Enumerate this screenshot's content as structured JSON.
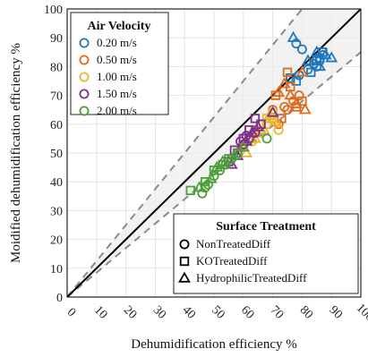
{
  "chart_data": {
    "type": "scatter",
    "title": "",
    "xlabel": "Dehumidification efficiency  %",
    "ylabel": "Moidified dehumidification efficiency %",
    "xlim": [
      0,
      100
    ],
    "ylim": [
      0,
      100
    ],
    "xticks": [
      "0",
      "10",
      "20",
      "30",
      "40",
      "50",
      "60",
      "70",
      "80",
      "90",
      "100"
    ],
    "yticks": [
      "0",
      "10",
      "20",
      "30",
      "40",
      "50",
      "60",
      "70",
      "80",
      "90",
      "100"
    ],
    "grid": true,
    "reference_lines": {
      "identity": "y = x",
      "upper_bound_slope": 1.25,
      "lower_bound_slope": 0.85
    },
    "legend_velocity": {
      "title": "Air Velocity",
      "placement": "top-left",
      "entries": [
        {
          "label": "0.20 m/s",
          "color": "#1f77bd"
        },
        {
          "label": "0.50 m/s",
          "color": "#e06a1b"
        },
        {
          "label": "1.00 m/s",
          "color": "#e9b52b"
        },
        {
          "label": "1.50 m/s",
          "color": "#7e2f8e"
        },
        {
          "label": "2.00 m/s",
          "color": "#4a9f3a"
        }
      ]
    },
    "legend_surface": {
      "title": "Surface Treatment",
      "placement": "bottom-right",
      "entries": [
        {
          "label": "NonTreatedDiff",
          "marker": "circle"
        },
        {
          "label": "KOTreatedDiff",
          "marker": "square"
        },
        {
          "label": "HydrophilicTreatedDiff",
          "marker": "triangle"
        }
      ]
    },
    "series": [
      {
        "velocity": "0.20 m/s",
        "surface": "NonTreatedDiff",
        "points": [
          [
            79,
            77
          ],
          [
            82,
            79
          ],
          [
            85,
            80
          ],
          [
            86,
            82
          ],
          [
            87,
            84
          ],
          [
            84,
            81
          ],
          [
            78,
            88
          ],
          [
            80,
            86
          ]
        ]
      },
      {
        "velocity": "0.20 m/s",
        "surface": "KOTreatedDiff",
        "points": [
          [
            78,
            75
          ],
          [
            83,
            78
          ],
          [
            86,
            83
          ],
          [
            87,
            85
          ],
          [
            85,
            82
          ],
          [
            76,
            76
          ]
        ]
      },
      {
        "velocity": "0.20 m/s",
        "surface": "HydrophilicTreatedDiff",
        "points": [
          [
            77,
            90
          ],
          [
            85,
            85
          ],
          [
            88,
            84
          ],
          [
            90,
            83
          ],
          [
            82,
            82
          ],
          [
            86,
            80
          ]
        ]
      },
      {
        "velocity": "0.50 m/s",
        "surface": "NonTreatedDiff",
        "points": [
          [
            70,
            65
          ],
          [
            74,
            66
          ],
          [
            77,
            68
          ],
          [
            79,
            70
          ],
          [
            72,
            60
          ],
          [
            75,
            65
          ]
        ]
      },
      {
        "velocity": "0.50 m/s",
        "surface": "KOTreatedDiff",
        "points": [
          [
            71,
            70
          ],
          [
            75,
            78
          ],
          [
            78,
            66
          ],
          [
            80,
            68
          ],
          [
            76,
            73
          ],
          [
            73,
            62
          ]
        ]
      },
      {
        "velocity": "0.50 m/s",
        "surface": "HydrophilicTreatedDiff",
        "points": [
          [
            72,
            71
          ],
          [
            76,
            70
          ],
          [
            80,
            78
          ],
          [
            81,
            65
          ],
          [
            78,
            67
          ],
          [
            74,
            74
          ]
        ]
      },
      {
        "velocity": "1.00 m/s",
        "surface": "NonTreatedDiff",
        "points": [
          [
            60,
            52
          ],
          [
            63,
            54
          ],
          [
            66,
            57
          ],
          [
            68,
            60
          ],
          [
            70,
            62
          ],
          [
            72,
            58
          ]
        ]
      },
      {
        "velocity": "1.00 m/s",
        "surface": "KOTreatedDiff",
        "points": [
          [
            62,
            55
          ],
          [
            64,
            58
          ],
          [
            66,
            60
          ],
          [
            68,
            62
          ],
          [
            70,
            64
          ],
          [
            58,
            50
          ]
        ]
      },
      {
        "velocity": "1.00 m/s",
        "surface": "HydrophilicTreatedDiff",
        "points": [
          [
            61,
            50
          ],
          [
            64,
            55
          ],
          [
            67,
            58
          ],
          [
            69,
            63
          ],
          [
            71,
            61
          ],
          [
            59,
            52
          ]
        ]
      },
      {
        "velocity": "1.50 m/s",
        "surface": "NonTreatedDiff",
        "points": [
          [
            56,
            48
          ],
          [
            58,
            50
          ],
          [
            60,
            53
          ],
          [
            62,
            55
          ],
          [
            64,
            57
          ],
          [
            59,
            54
          ],
          [
            61,
            56
          ]
        ]
      },
      {
        "velocity": "1.50 m/s",
        "surface": "KOTreatedDiff",
        "points": [
          [
            57,
            51
          ],
          [
            60,
            55
          ],
          [
            62,
            58
          ],
          [
            64,
            62
          ],
          [
            66,
            60
          ],
          [
            55,
            47
          ]
        ]
      },
      {
        "velocity": "1.50 m/s",
        "surface": "HydrophilicTreatedDiff",
        "points": [
          [
            58,
            49
          ],
          [
            61,
            54
          ],
          [
            63,
            57
          ],
          [
            65,
            59
          ],
          [
            70,
            64
          ],
          [
            56,
            46
          ]
        ]
      },
      {
        "velocity": "2.00 m/s",
        "surface": "NonTreatedDiff",
        "points": [
          [
            46,
            36
          ],
          [
            48,
            39
          ],
          [
            50,
            42
          ],
          [
            52,
            44
          ],
          [
            54,
            46
          ],
          [
            56,
            48
          ],
          [
            47,
            38
          ],
          [
            68,
            55
          ]
        ]
      },
      {
        "velocity": "2.00 m/s",
        "surface": "KOTreatedDiff",
        "points": [
          [
            42,
            37
          ],
          [
            47,
            40
          ],
          [
            50,
            44
          ],
          [
            53,
            46
          ],
          [
            55,
            48
          ],
          [
            58,
            50
          ]
        ]
      },
      {
        "velocity": "2.00 m/s",
        "surface": "HydrophilicTreatedDiff",
        "points": [
          [
            45,
            38
          ],
          [
            49,
            41
          ],
          [
            51,
            45
          ],
          [
            53,
            47
          ],
          [
            57,
            49
          ],
          [
            60,
            52
          ]
        ]
      }
    ]
  }
}
